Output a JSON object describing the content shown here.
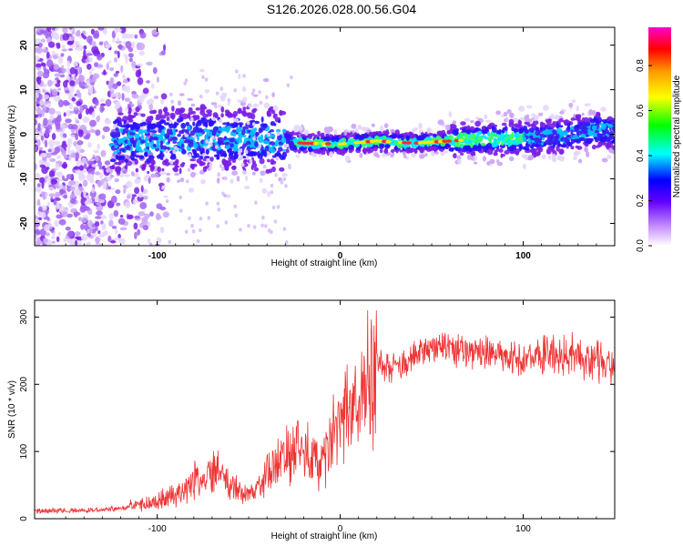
{
  "title": "S126.2026.028.00.56.G04",
  "colors": {
    "snr_line": "#ee3333",
    "frame": "#000000"
  },
  "chart_data": [
    {
      "type": "heatmap",
      "title": "S126.2026.028.00.56.G04",
      "xlabel": "Height of straight line (km)",
      "ylabel": "Frequency (Hz)",
      "xlim": [
        -167,
        150
      ],
      "ylim": [
        -25,
        24
      ],
      "xticks": [
        "-100",
        "0",
        "100"
      ],
      "yticks": [
        "-20",
        "-10",
        "0",
        "10",
        "20"
      ],
      "colorbar": {
        "label": "Normalized spectral amplitude",
        "range": [
          0,
          0.97
        ],
        "ticks": [
          "0.0",
          "0.2",
          "0.4",
          "0.6",
          "0.8"
        ],
        "colormap": "rainbow (white-violet-blue-cyan-green-yellow-red-magenta)"
      },
      "ridge": {
        "description": "dominant frequency ridge",
        "x": [
          -120,
          -100,
          -80,
          -60,
          -40,
          -20,
          0,
          20,
          40,
          60,
          80,
          100,
          120,
          140,
          150
        ],
        "y": [
          -1.5,
          -1.5,
          -1,
          -1,
          -1.2,
          -2,
          -2.2,
          -1.5,
          -2,
          -1.5,
          -1,
          -1,
          -0.5,
          1,
          0.5
        ]
      }
    },
    {
      "type": "line",
      "title": "",
      "xlabel": "Height of straight line (km)",
      "ylabel": "SNR (10 * v/v)",
      "xlim": [
        -167,
        150
      ],
      "ylim": [
        0,
        325
      ],
      "xticks": [
        "-100",
        "0",
        "100"
      ],
      "yticks": [
        "0",
        "100",
        "200",
        "300"
      ],
      "series": [
        {
          "name": "SNR",
          "x": [
            -167,
            -140,
            -120,
            -110,
            -100,
            -90,
            -80,
            -70,
            -60,
            -50,
            -45,
            -40,
            -30,
            -20,
            -10,
            -5,
            0,
            5,
            10,
            15,
            20,
            25,
            30,
            40,
            50,
            60,
            70,
            80,
            90,
            100,
            110,
            120,
            130,
            140,
            150
          ],
          "values": [
            12,
            12,
            15,
            20,
            25,
            35,
            55,
            70,
            50,
            35,
            40,
            65,
            95,
            100,
            85,
            120,
            150,
            155,
            160,
            210,
            230,
            230,
            225,
            240,
            255,
            250,
            250,
            245,
            240,
            240,
            245,
            245,
            240,
            235,
            235
          ]
        }
      ]
    }
  ]
}
